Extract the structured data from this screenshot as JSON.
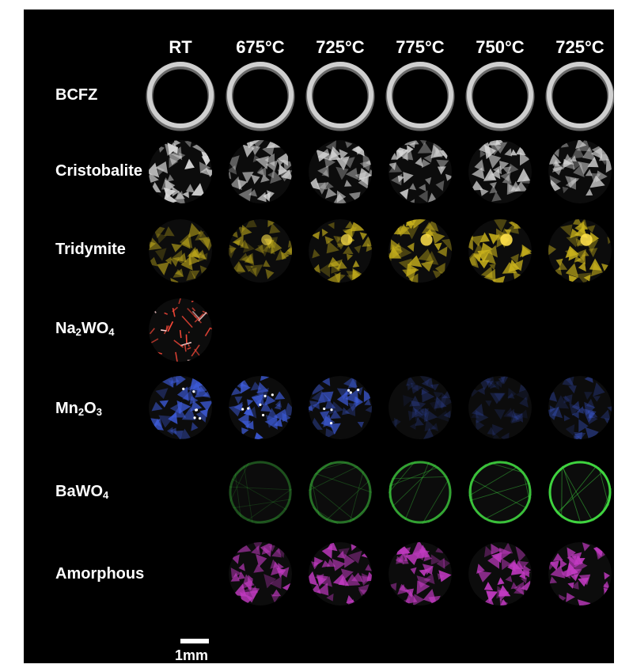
{
  "columns": [
    "RT",
    "675°C",
    "725°C",
    "775°C",
    "750°C",
    "725°C"
  ],
  "rows": [
    {
      "prefix": "BCFZ",
      "sub1": "",
      "mid": "",
      "sub2": "",
      "style": "ring",
      "color": "#cfcfcf",
      "intensity": [
        1,
        1,
        1,
        1,
        1,
        1
      ]
    },
    {
      "prefix": "Cristobalite",
      "sub1": "",
      "mid": "",
      "sub2": "",
      "style": "grains",
      "color": "#d9d9d9",
      "intensity": [
        1,
        0.85,
        0.85,
        0.85,
        0.85,
        0.85
      ]
    },
    {
      "prefix": "Tridymite",
      "sub1": "",
      "mid": "",
      "sub2": "",
      "style": "grains",
      "color": "#c9b21c",
      "intensity": [
        0.6,
        0.6,
        0.75,
        0.85,
        0.9,
        0.9
      ]
    },
    {
      "prefix": "Na",
      "sub1": "2",
      "mid": "WO",
      "sub2": "4",
      "style": "fibers",
      "color": "#ff4a3a",
      "intensity": [
        1,
        0,
        0,
        0,
        0,
        0
      ]
    },
    {
      "prefix": "Mn",
      "sub1": "2",
      "mid": "O",
      "sub2": "3",
      "style": "grains",
      "color": "#3d5bd9",
      "intensity": [
        0.85,
        0.95,
        0.75,
        0.25,
        0.25,
        0.45
      ]
    },
    {
      "prefix": "BaWO",
      "sub1": "4",
      "mid": "",
      "sub2": "",
      "style": "net",
      "color": "#3fd43f",
      "intensity": [
        0,
        0.35,
        0.5,
        0.75,
        0.9,
        1
      ]
    },
    {
      "prefix": "Amorphous",
      "sub1": "",
      "mid": "",
      "sub2": "",
      "style": "grains",
      "color": "#c23ac2",
      "intensity": [
        0,
        0.85,
        0.85,
        0.9,
        0.95,
        0.95
      ]
    }
  ],
  "scale_bar": {
    "label": "1mm"
  }
}
